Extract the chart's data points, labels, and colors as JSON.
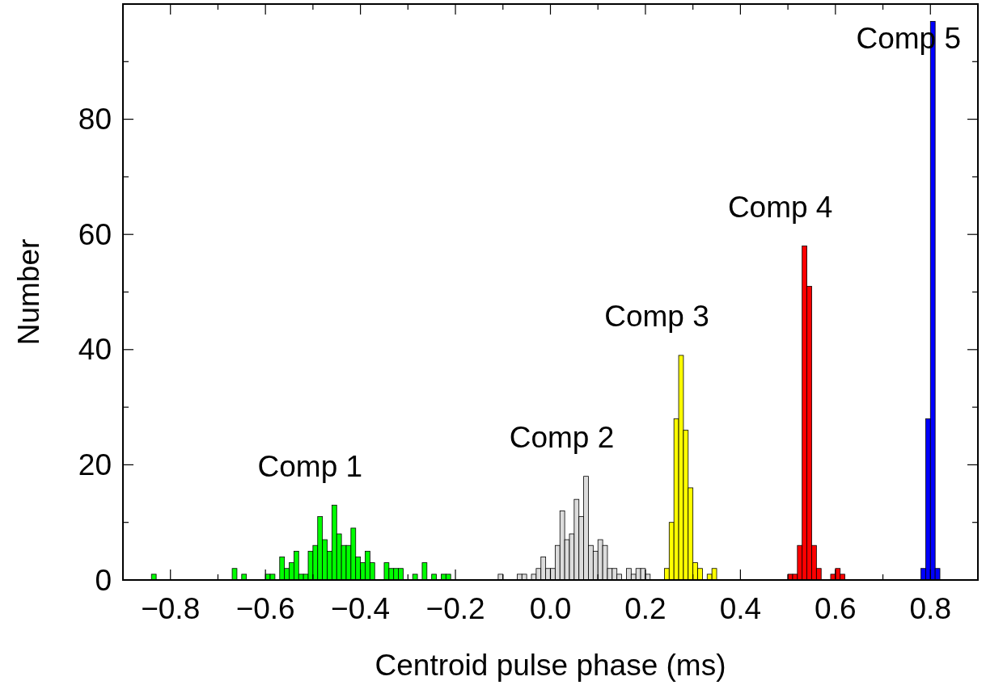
{
  "chart_data": {
    "type": "histogram",
    "xlabel": "Centroid pulse phase (ms)",
    "ylabel": "Number",
    "xlim": [
      -0.9,
      0.9
    ],
    "ylim": [
      0,
      100
    ],
    "xticks": [
      {
        "value": -0.8,
        "label": "−0.8"
      },
      {
        "value": -0.7,
        "label": null
      },
      {
        "value": -0.6,
        "label": "−0.6"
      },
      {
        "value": -0.5,
        "label": null
      },
      {
        "value": -0.4,
        "label": "−0.4"
      },
      {
        "value": -0.3,
        "label": null
      },
      {
        "value": -0.2,
        "label": "−0.2"
      },
      {
        "value": -0.1,
        "label": null
      },
      {
        "value": 0,
        "label": "0.0"
      },
      {
        "value": 0.1,
        "label": null
      },
      0.2,
      {
        "value": 0.3,
        "label": null
      },
      0.4,
      {
        "value": 0.5,
        "label": null
      },
      0.6,
      {
        "value": 0.7,
        "label": null
      },
      0.8
    ],
    "yticks": [
      0,
      {
        "value": 10,
        "label": null
      },
      20,
      {
        "value": 30,
        "label": null
      },
      40,
      {
        "value": 50,
        "label": null
      },
      60,
      {
        "value": 70,
        "label": null
      },
      80,
      {
        "value": 90,
        "label": null
      }
    ],
    "grid": false,
    "legend": false,
    "bins": [
      -0.84,
      -0.83,
      -0.82,
      -0.81,
      -0.8,
      -0.79,
      -0.78,
      -0.77,
      -0.76,
      -0.75,
      -0.74,
      -0.73,
      -0.72,
      -0.71,
      -0.7,
      -0.69,
      -0.68,
      -0.67,
      -0.66,
      -0.65,
      -0.64,
      -0.63,
      -0.62,
      -0.61,
      -0.6,
      -0.59,
      -0.58,
      -0.57,
      -0.56,
      -0.55,
      -0.54,
      -0.53,
      -0.52,
      -0.51,
      -0.5,
      -0.49,
      -0.48,
      -0.47,
      -0.46,
      -0.45,
      -0.44,
      -0.43,
      -0.42,
      -0.41,
      -0.4,
      -0.39,
      -0.38,
      -0.37,
      -0.36,
      -0.35,
      -0.34,
      -0.33,
      -0.32,
      -0.31,
      -0.3,
      -0.29,
      -0.28,
      -0.27,
      -0.26,
      -0.25,
      -0.24,
      -0.23,
      -0.22,
      -0.21,
      -0.2,
      -0.19,
      -0.18,
      -0.17,
      -0.16,
      -0.15,
      -0.14,
      -0.13,
      -0.12,
      -0.11,
      -0.1,
      -0.09,
      -0.08,
      -0.07,
      -0.06,
      -0.05,
      -0.04,
      -0.03,
      -0.02,
      -0.01,
      0,
      0.01,
      0.02,
      0.03,
      0.04,
      0.05,
      0.06,
      0.07,
      0.08,
      0.09,
      0.1,
      0.11,
      0.12,
      0.13,
      0.14,
      0.15,
      0.16,
      0.17,
      0.18,
      0.19,
      0.2,
      0.21,
      0.22,
      0.23,
      0.24,
      0.25,
      0.26,
      0.27,
      0.28,
      0.29,
      0.3,
      0.31,
      0.32,
      0.33,
      0.34,
      0.35,
      0.36,
      0.37,
      0.38,
      0.39,
      0.4,
      0.41,
      0.42,
      0.43,
      0.44,
      0.45,
      0.46,
      0.47,
      0.48,
      0.49,
      0.5,
      0.51,
      0.52,
      0.53,
      0.54,
      0.55,
      0.56,
      0.57,
      0.58,
      0.59,
      0.6,
      0.61,
      0.62,
      0.63,
      0.64,
      0.65,
      0.66,
      0.67,
      0.68,
      0.69,
      0.7,
      0.71,
      0.72,
      0.73,
      0.74,
      0.75,
      0.76,
      0.77,
      0.78,
      0.79,
      0.8,
      0.81,
      0.82
    ],
    "series": [
      {
        "color": "#00ff00",
        "values": [
          1,
          0,
          0,
          0,
          0,
          0,
          0,
          0,
          0,
          0,
          0,
          0,
          0,
          0,
          0,
          0,
          0,
          2,
          0,
          1,
          0,
          0,
          0,
          0,
          1,
          1,
          0,
          4,
          2,
          3,
          5,
          1,
          1,
          5,
          6,
          11,
          7,
          5,
          13,
          8,
          6,
          6,
          9,
          4,
          3,
          5,
          3,
          0,
          0,
          3,
          2,
          2,
          2,
          0,
          0,
          1,
          0,
          3,
          0,
          1,
          0,
          1,
          1,
          null,
          null,
          null,
          null,
          null,
          null,
          null,
          null,
          null,
          null,
          null,
          null,
          null,
          null,
          null,
          null,
          null,
          null,
          null,
          null,
          null,
          null,
          null,
          null,
          null,
          null,
          null,
          null,
          null,
          null,
          null,
          null,
          null,
          null,
          null,
          null,
          null,
          null,
          null,
          null,
          null,
          null,
          null,
          null,
          null,
          null,
          null,
          null,
          null,
          null,
          null,
          null,
          null,
          null,
          null,
          null,
          null,
          null,
          null,
          null,
          null,
          null,
          null,
          null,
          null,
          null,
          null,
          null,
          null,
          null,
          null,
          null,
          null,
          null,
          null,
          null,
          null,
          null,
          null,
          null,
          null,
          null,
          null,
          null,
          null,
          null,
          null,
          null,
          null,
          null,
          null,
          null,
          null,
          null,
          null,
          null,
          null,
          null,
          null,
          null,
          null,
          null,
          null
        ]
      },
      {
        "color": "#dcdcdc",
        "values": [
          null,
          null,
          null,
          null,
          null,
          null,
          null,
          null,
          null,
          null,
          null,
          null,
          null,
          null,
          null,
          null,
          null,
          null,
          null,
          null,
          null,
          null,
          null,
          null,
          null,
          null,
          null,
          null,
          null,
          null,
          null,
          null,
          null,
          null,
          null,
          null,
          null,
          null,
          null,
          null,
          null,
          null,
          null,
          null,
          null,
          null,
          null,
          null,
          null,
          null,
          null,
          null,
          null,
          null,
          null,
          null,
          null,
          null,
          null,
          null,
          null,
          null,
          null,
          null,
          null,
          null,
          null,
          null,
          null,
          null,
          null,
          null,
          null,
          1,
          0,
          0,
          0,
          1,
          1,
          0,
          1,
          2,
          4,
          2,
          2,
          6,
          12,
          7,
          8,
          14,
          11,
          18,
          6,
          5,
          7,
          6,
          2,
          2,
          1,
          0,
          2,
          1,
          2,
          2,
          1,
          null,
          null,
          null,
          null,
          null,
          null,
          null,
          null,
          null,
          null,
          null,
          null,
          null,
          null,
          null,
          null,
          null,
          null,
          null,
          null,
          null,
          null,
          null,
          null,
          null,
          null,
          null,
          null,
          null,
          null,
          null,
          null,
          null,
          null,
          null,
          null,
          null,
          null,
          null,
          null,
          null,
          null,
          null,
          null,
          null,
          null,
          null,
          null,
          null,
          null,
          null,
          null,
          null,
          null,
          null,
          null,
          null,
          null,
          null,
          null,
          null
        ]
      },
      {
        "color": "#ffff00",
        "values": [
          null,
          null,
          null,
          null,
          null,
          null,
          null,
          null,
          null,
          null,
          null,
          null,
          null,
          null,
          null,
          null,
          null,
          null,
          null,
          null,
          null,
          null,
          null,
          null,
          null,
          null,
          null,
          null,
          null,
          null,
          null,
          null,
          null,
          null,
          null,
          null,
          null,
          null,
          null,
          null,
          null,
          null,
          null,
          null,
          null,
          null,
          null,
          null,
          null,
          null,
          null,
          null,
          null,
          null,
          null,
          null,
          null,
          null,
          null,
          null,
          null,
          null,
          null,
          null,
          null,
          null,
          null,
          null,
          null,
          null,
          null,
          null,
          null,
          null,
          null,
          null,
          null,
          null,
          null,
          null,
          null,
          null,
          null,
          null,
          null,
          null,
          null,
          null,
          null,
          null,
          null,
          null,
          null,
          null,
          null,
          null,
          null,
          null,
          null,
          null,
          null,
          null,
          null,
          null,
          null,
          null,
          null,
          null,
          2,
          10,
          28,
          39,
          26,
          16,
          3,
          2,
          0,
          1,
          2,
          null,
          null,
          null,
          null,
          null,
          null,
          null,
          null,
          null,
          null,
          null,
          null,
          null,
          null,
          null,
          null,
          null,
          null,
          null,
          null,
          null,
          null,
          null,
          null,
          null,
          null,
          null,
          null,
          null,
          null,
          null,
          null,
          null,
          null,
          null,
          null,
          null,
          null,
          null,
          null,
          null,
          null,
          null,
          null,
          null,
          null,
          null
        ]
      },
      {
        "color": "#ff0000",
        "values": [
          null,
          null,
          null,
          null,
          null,
          null,
          null,
          null,
          null,
          null,
          null,
          null,
          null,
          null,
          null,
          null,
          null,
          null,
          null,
          null,
          null,
          null,
          null,
          null,
          null,
          null,
          null,
          null,
          null,
          null,
          null,
          null,
          null,
          null,
          null,
          null,
          null,
          null,
          null,
          null,
          null,
          null,
          null,
          null,
          null,
          null,
          null,
          null,
          null,
          null,
          null,
          null,
          null,
          null,
          null,
          null,
          null,
          null,
          null,
          null,
          null,
          null,
          null,
          null,
          null,
          null,
          null,
          null,
          null,
          null,
          null,
          null,
          null,
          null,
          null,
          null,
          null,
          null,
          null,
          null,
          null,
          null,
          null,
          null,
          null,
          null,
          null,
          null,
          null,
          null,
          null,
          null,
          null,
          null,
          null,
          null,
          null,
          null,
          null,
          null,
          null,
          null,
          null,
          null,
          null,
          null,
          null,
          null,
          null,
          null,
          null,
          null,
          null,
          null,
          null,
          null,
          null,
          null,
          null,
          null,
          null,
          null,
          null,
          null,
          null,
          null,
          null,
          null,
          null,
          null,
          null,
          null,
          null,
          null,
          1,
          1,
          6,
          58,
          51,
          6,
          2,
          0,
          0,
          1,
          2,
          1,
          null,
          null,
          null,
          null,
          null,
          null,
          null,
          null,
          null,
          null,
          null,
          null,
          null,
          null,
          null,
          null,
          null,
          null,
          null,
          null
        ]
      },
      {
        "color": "#0000ff",
        "values": [
          null,
          null,
          null,
          null,
          null,
          null,
          null,
          null,
          null,
          null,
          null,
          null,
          null,
          null,
          null,
          null,
          null,
          null,
          null,
          null,
          null,
          null,
          null,
          null,
          null,
          null,
          null,
          null,
          null,
          null,
          null,
          null,
          null,
          null,
          null,
          null,
          null,
          null,
          null,
          null,
          null,
          null,
          null,
          null,
          null,
          null,
          null,
          null,
          null,
          null,
          null,
          null,
          null,
          null,
          null,
          null,
          null,
          null,
          null,
          null,
          null,
          null,
          null,
          null,
          null,
          null,
          null,
          null,
          null,
          null,
          null,
          null,
          null,
          null,
          null,
          null,
          null,
          null,
          null,
          null,
          null,
          null,
          null,
          null,
          null,
          null,
          null,
          null,
          null,
          null,
          null,
          null,
          null,
          null,
          null,
          null,
          null,
          null,
          null,
          null,
          null,
          null,
          null,
          null,
          null,
          null,
          null,
          null,
          null,
          null,
          null,
          null,
          null,
          null,
          null,
          null,
          null,
          null,
          null,
          null,
          null,
          null,
          null,
          null,
          null,
          null,
          null,
          null,
          null,
          null,
          null,
          null,
          null,
          null,
          null,
          null,
          null,
          null,
          null,
          null,
          null,
          null,
          null,
          null,
          null,
          null,
          null,
          null,
          null,
          null,
          null,
          null,
          null,
          null,
          null,
          null,
          null,
          null,
          null,
          null,
          null,
          null,
          2,
          28,
          97,
          2
        ]
      }
    ],
    "annotations": [
      {
        "text": "Comp 1",
        "x": -0.455,
        "y": 13
      },
      {
        "text": "Comp 2",
        "x": 0.075,
        "y": 18
      },
      {
        "text": "Comp 3",
        "x": 0.275,
        "y": 39
      },
      {
        "text": "Comp 4",
        "x": 0.535,
        "y": 58
      },
      {
        "text": "Comp 5",
        "x": 0.805,
        "y": 97
      }
    ]
  }
}
